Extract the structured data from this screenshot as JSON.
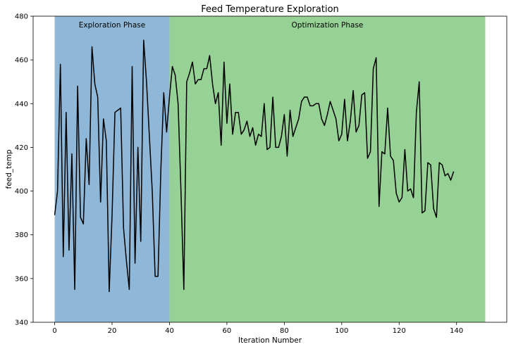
{
  "chart_data": {
    "type": "line",
    "title": "Feed Temperature Exploration",
    "xlabel": "Iteration Number",
    "ylabel": "feed_temp",
    "xlim": [
      -7.5,
      157.5
    ],
    "ylim": [
      340,
      480
    ],
    "xticks": [
      0,
      20,
      40,
      60,
      80,
      100,
      120,
      140
    ],
    "yticks": [
      340,
      360,
      380,
      400,
      420,
      440,
      460,
      480
    ],
    "grid": false,
    "line_color": "#000000",
    "regions": [
      {
        "label": "Exploration Phase",
        "x0": 0,
        "x1": 40,
        "color": "#8fb8d8"
      },
      {
        "label": "Optimization Phase",
        "x0": 40,
        "x1": 150,
        "color": "#96d196"
      }
    ],
    "series": [
      {
        "x": [
          0,
          1,
          2,
          3,
          4,
          5,
          6,
          7,
          8,
          9,
          10,
          11,
          12,
          13,
          14,
          15,
          16,
          17,
          18,
          19,
          20,
          21,
          22,
          23,
          24,
          25,
          26,
          27,
          28,
          29,
          30,
          31,
          32,
          33,
          34,
          35,
          36,
          37,
          38,
          39,
          40,
          41,
          42,
          43,
          44,
          45,
          46,
          47,
          48,
          49,
          50,
          51,
          52,
          53,
          54,
          55,
          56,
          57,
          58,
          59,
          60,
          61,
          62,
          63,
          64,
          65,
          66,
          67,
          68,
          69,
          70,
          71,
          72,
          73,
          74,
          75,
          76,
          77,
          78,
          79,
          80,
          81,
          82,
          83,
          84,
          85,
          86,
          87,
          88,
          89,
          90,
          91,
          92,
          93,
          94,
          95,
          96,
          97,
          98,
          99,
          100,
          101,
          102,
          103,
          104,
          105,
          106,
          107,
          108,
          109,
          110,
          111,
          112,
          113,
          114,
          115,
          116,
          117,
          118,
          119,
          120,
          121,
          122,
          123,
          124,
          125,
          126,
          127,
          128,
          129,
          130,
          131,
          132,
          133,
          134,
          135,
          136,
          137,
          138,
          139
        ],
        "y": [
          389,
          400,
          458,
          370,
          436,
          373,
          417,
          355,
          448,
          388,
          385,
          424,
          403,
          466,
          449,
          443,
          395,
          433,
          423,
          354,
          389,
          436,
          437,
          438,
          383,
          368,
          355,
          457,
          367,
          420,
          377,
          469,
          450,
          425,
          400,
          361,
          361,
          410,
          445,
          427,
          443,
          457,
          453,
          440,
          400,
          355,
          450,
          454,
          459,
          449,
          451,
          451,
          456,
          456,
          462,
          449,
          440,
          445,
          421,
          459,
          431,
          449,
          426,
          436,
          436,
          426,
          428,
          432,
          425,
          429,
          421,
          426,
          425,
          440,
          419,
          420,
          443,
          420,
          420,
          425,
          435,
          416,
          437,
          425,
          429,
          433,
          441,
          443,
          443,
          439,
          439,
          440,
          440,
          433,
          430,
          435,
          441,
          437,
          433,
          423,
          426,
          442,
          423,
          432,
          446,
          427,
          430,
          444,
          445,
          415,
          418,
          456,
          461,
          393,
          418,
          417,
          438,
          416,
          414,
          399,
          395,
          397,
          419,
          400,
          401,
          397,
          436,
          450,
          390,
          391,
          413,
          412,
          392,
          388,
          413,
          412,
          407,
          408,
          405,
          409
        ]
      }
    ]
  }
}
